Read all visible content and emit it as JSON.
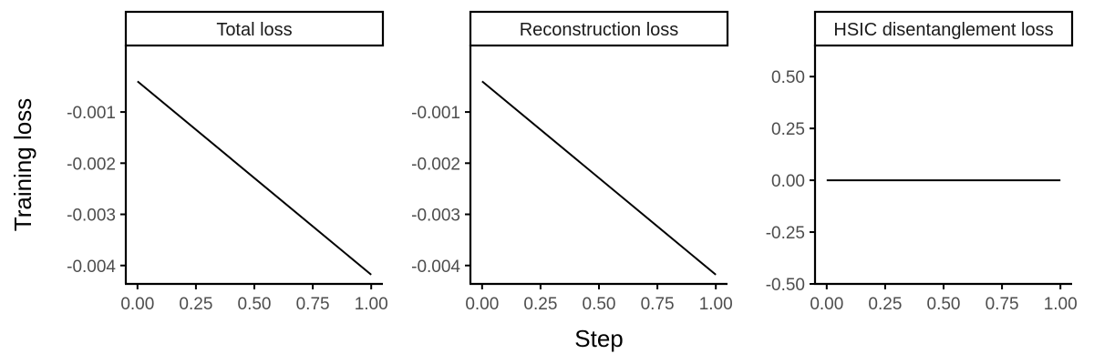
{
  "figure": {
    "ylabel": "Training loss",
    "xlabel": "Step"
  },
  "chart_data": [
    {
      "type": "line",
      "title": "Total loss",
      "xlabel": "Step",
      "ylabel": "Training loss",
      "xlim": [
        -0.05,
        1.05
      ],
      "ylim": [
        -0.00436,
        0.0003
      ],
      "x_ticks": [
        0.0,
        0.25,
        0.5,
        0.75,
        1.0
      ],
      "x_tick_labels": [
        "0.00",
        "0.25",
        "0.50",
        "0.75",
        "1.00"
      ],
      "y_ticks": [
        -0.001,
        -0.002,
        -0.003,
        -0.004
      ],
      "y_tick_labels": [
        "-0.001",
        "-0.002",
        "-0.003",
        "-0.004"
      ],
      "grid": false,
      "series": [
        {
          "x": [
            0.0,
            1.0
          ],
          "y": [
            -0.0004,
            -0.00418
          ]
        }
      ]
    },
    {
      "type": "line",
      "title": "Reconstruction loss",
      "xlabel": "Step",
      "ylabel": "Training loss",
      "xlim": [
        -0.05,
        1.05
      ],
      "ylim": [
        -0.00436,
        0.0003
      ],
      "x_ticks": [
        0.0,
        0.25,
        0.5,
        0.75,
        1.0
      ],
      "x_tick_labels": [
        "0.00",
        "0.25",
        "0.50",
        "0.75",
        "1.00"
      ],
      "y_ticks": [
        -0.001,
        -0.002,
        -0.003,
        -0.004
      ],
      "y_tick_labels": [
        "-0.001",
        "-0.002",
        "-0.003",
        "-0.004"
      ],
      "grid": false,
      "series": [
        {
          "x": [
            0.0,
            1.0
          ],
          "y": [
            -0.0004,
            -0.00418
          ]
        }
      ]
    },
    {
      "type": "line",
      "title": "HSIC disentanglement loss",
      "xlabel": "Step",
      "ylabel": "Training loss",
      "xlim": [
        -0.05,
        1.05
      ],
      "ylim": [
        -0.5,
        0.65
      ],
      "x_ticks": [
        0.0,
        0.25,
        0.5,
        0.75,
        1.0
      ],
      "x_tick_labels": [
        "0.00",
        "0.25",
        "0.50",
        "0.75",
        "1.00"
      ],
      "y_ticks": [
        0.5,
        0.25,
        0.0,
        -0.25,
        -0.5
      ],
      "y_tick_labels": [
        "0.50",
        "0.25",
        "0.00",
        "-0.25",
        "-0.50"
      ],
      "grid": false,
      "series": [
        {
          "x": [
            0.0,
            1.0
          ],
          "y": [
            0.0,
            0.0
          ]
        }
      ]
    }
  ]
}
